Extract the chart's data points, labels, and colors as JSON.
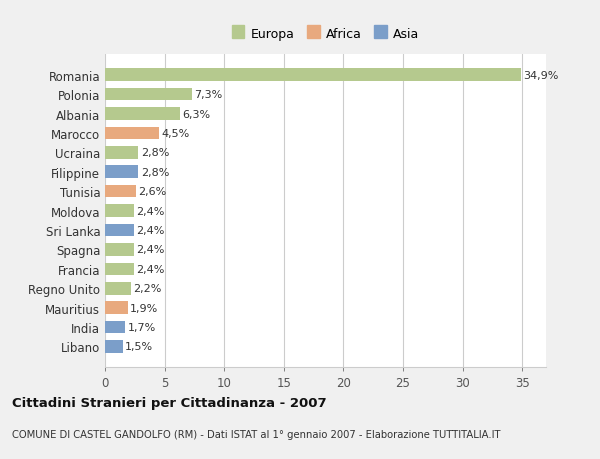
{
  "categories": [
    "Romania",
    "Polonia",
    "Albania",
    "Marocco",
    "Ucraina",
    "Filippine",
    "Tunisia",
    "Moldova",
    "Sri Lanka",
    "Spagna",
    "Francia",
    "Regno Unito",
    "Mauritius",
    "India",
    "Libano"
  ],
  "values": [
    34.9,
    7.3,
    6.3,
    4.5,
    2.8,
    2.8,
    2.6,
    2.4,
    2.4,
    2.4,
    2.4,
    2.2,
    1.9,
    1.7,
    1.5
  ],
  "labels": [
    "34,9%",
    "7,3%",
    "6,3%",
    "4,5%",
    "2,8%",
    "2,8%",
    "2,6%",
    "2,4%",
    "2,4%",
    "2,4%",
    "2,4%",
    "2,2%",
    "1,9%",
    "1,7%",
    "1,5%"
  ],
  "continents": [
    "Europa",
    "Europa",
    "Europa",
    "Africa",
    "Europa",
    "Asia",
    "Africa",
    "Europa",
    "Asia",
    "Europa",
    "Europa",
    "Europa",
    "Africa",
    "Asia",
    "Asia"
  ],
  "color_europa": "#b5c98e",
  "color_africa": "#e8a97e",
  "color_asia": "#7b9ec9",
  "background_color": "#f0f0f0",
  "plot_background": "#ffffff",
  "grid_color": "#cccccc",
  "title": "Cittadini Stranieri per Cittadinanza - 2007",
  "subtitle": "COMUNE DI CASTEL GANDOLFO (RM) - Dati ISTAT al 1° gennaio 2007 - Elaborazione TUTTITALIA.IT",
  "xlim": [
    0,
    37
  ],
  "xticks": [
    0,
    5,
    10,
    15,
    20,
    25,
    30,
    35
  ]
}
